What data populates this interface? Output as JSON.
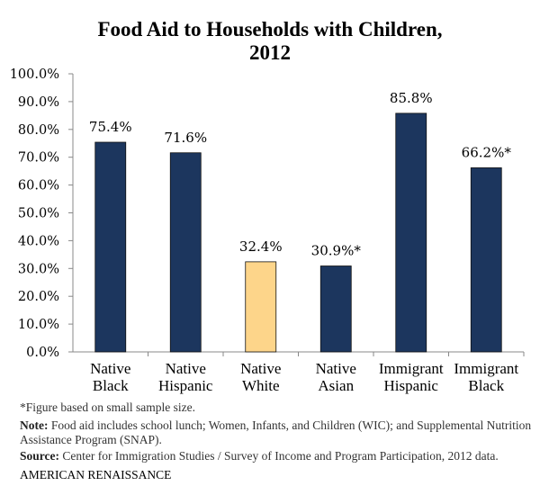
{
  "chart_data": {
    "type": "bar",
    "title_lines": [
      "Food Aid to Households with Children,",
      "2012"
    ],
    "categories": [
      [
        "Native",
        "Black"
      ],
      [
        "Native",
        "Hispanic"
      ],
      [
        "Native",
        "White"
      ],
      [
        "Native",
        "Asian"
      ],
      [
        "Immigrant",
        "Hispanic"
      ],
      [
        "Immigrant",
        "Black"
      ]
    ],
    "values": [
      75.4,
      71.6,
      32.4,
      30.9,
      85.8,
      66.2
    ],
    "data_labels": [
      "75.4%",
      "71.6%",
      "32.4%",
      "30.9%*",
      "85.8%",
      "66.2%*"
    ],
    "bar_colors": [
      "#1c365e",
      "#1c365e",
      "#fdd58a",
      "#1c365e",
      "#1c365e",
      "#1c365e"
    ],
    "ylim": [
      0,
      100
    ],
    "yticks": [
      "0.0%",
      "10.0%",
      "20.0%",
      "30.0%",
      "40.0%",
      "50.0%",
      "60.0%",
      "70.0%",
      "80.0%",
      "90.0%",
      "100.0%"
    ],
    "grid": false,
    "legend": "none"
  },
  "footnotes": {
    "asterisk": "*Figure based on small sample size.",
    "note_label": "Note:",
    "note_text": " Food aid includes school lunch; Women, Infants, and Children (WIC); and Supplemental Nutrition Assistance Program (SNAP).",
    "source_label": "Source:",
    "source_text": " Center for Immigration Studies / Survey of Income and Program Participation, 2012 data."
  },
  "brand": "AMERICAN RENAISSANCE"
}
